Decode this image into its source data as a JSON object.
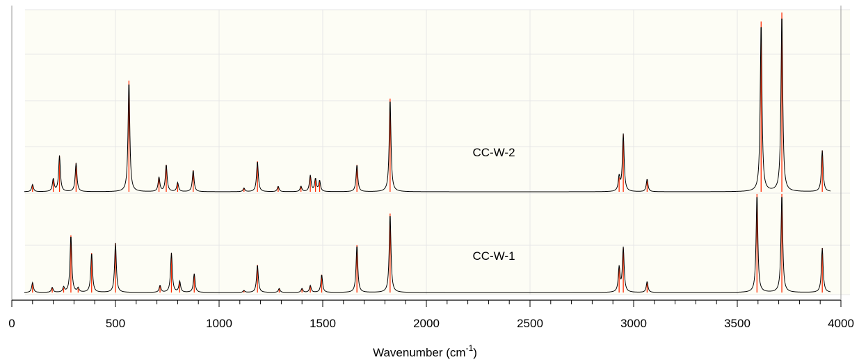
{
  "chart_data": {
    "type": "line",
    "xlabel": "Wavenumber (cm-1)",
    "xlabel_main": "Wavenumber (cm",
    "xlabel_sup": "-1",
    "xlabel_end": ")",
    "xlim": [
      0,
      4000
    ],
    "x_ticks": [
      "0",
      "500",
      "1000",
      "1500",
      "2000",
      "2500",
      "3000",
      "3500",
      "4000"
    ],
    "grid": true,
    "legend": "none",
    "colors": {
      "stick": "#ff2a00",
      "envelope": "#000000",
      "grid": "#e6e6e6",
      "background": "#fdfdf5"
    },
    "series": [
      {
        "name": "CC-W-2",
        "peaks": [
          [
            100,
            0.04
          ],
          [
            200,
            0.07
          ],
          [
            230,
            0.2
          ],
          [
            310,
            0.16
          ],
          [
            565,
            0.62
          ],
          [
            710,
            0.08
          ],
          [
            745,
            0.15
          ],
          [
            800,
            0.05
          ],
          [
            875,
            0.12
          ],
          [
            1120,
            0.02
          ],
          [
            1185,
            0.17
          ],
          [
            1285,
            0.03
          ],
          [
            1395,
            0.03
          ],
          [
            1440,
            0.09
          ],
          [
            1465,
            0.07
          ],
          [
            1485,
            0.06
          ],
          [
            1665,
            0.15
          ],
          [
            1825,
            0.52
          ],
          [
            2930,
            0.08
          ],
          [
            2950,
            0.32
          ],
          [
            3065,
            0.07
          ],
          [
            3615,
            0.95
          ],
          [
            3715,
            1.0
          ],
          [
            3910,
            0.23
          ]
        ]
      },
      {
        "name": "CC-W-1",
        "peaks": [
          [
            100,
            0.1
          ],
          [
            195,
            0.05
          ],
          [
            250,
            0.05
          ],
          [
            285,
            0.58
          ],
          [
            320,
            0.04
          ],
          [
            385,
            0.4
          ],
          [
            500,
            0.5
          ],
          [
            715,
            0.07
          ],
          [
            770,
            0.4
          ],
          [
            810,
            0.11
          ],
          [
            880,
            0.19
          ],
          [
            1120,
            0.02
          ],
          [
            1185,
            0.28
          ],
          [
            1290,
            0.04
          ],
          [
            1400,
            0.04
          ],
          [
            1440,
            0.07
          ],
          [
            1495,
            0.18
          ],
          [
            1665,
            0.48
          ],
          [
            1825,
            0.8
          ],
          [
            2930,
            0.25
          ],
          [
            2950,
            0.45
          ],
          [
            3065,
            0.11
          ],
          [
            3595,
            1.0
          ],
          [
            3715,
            1.0
          ],
          [
            3910,
            0.45
          ]
        ]
      }
    ]
  }
}
